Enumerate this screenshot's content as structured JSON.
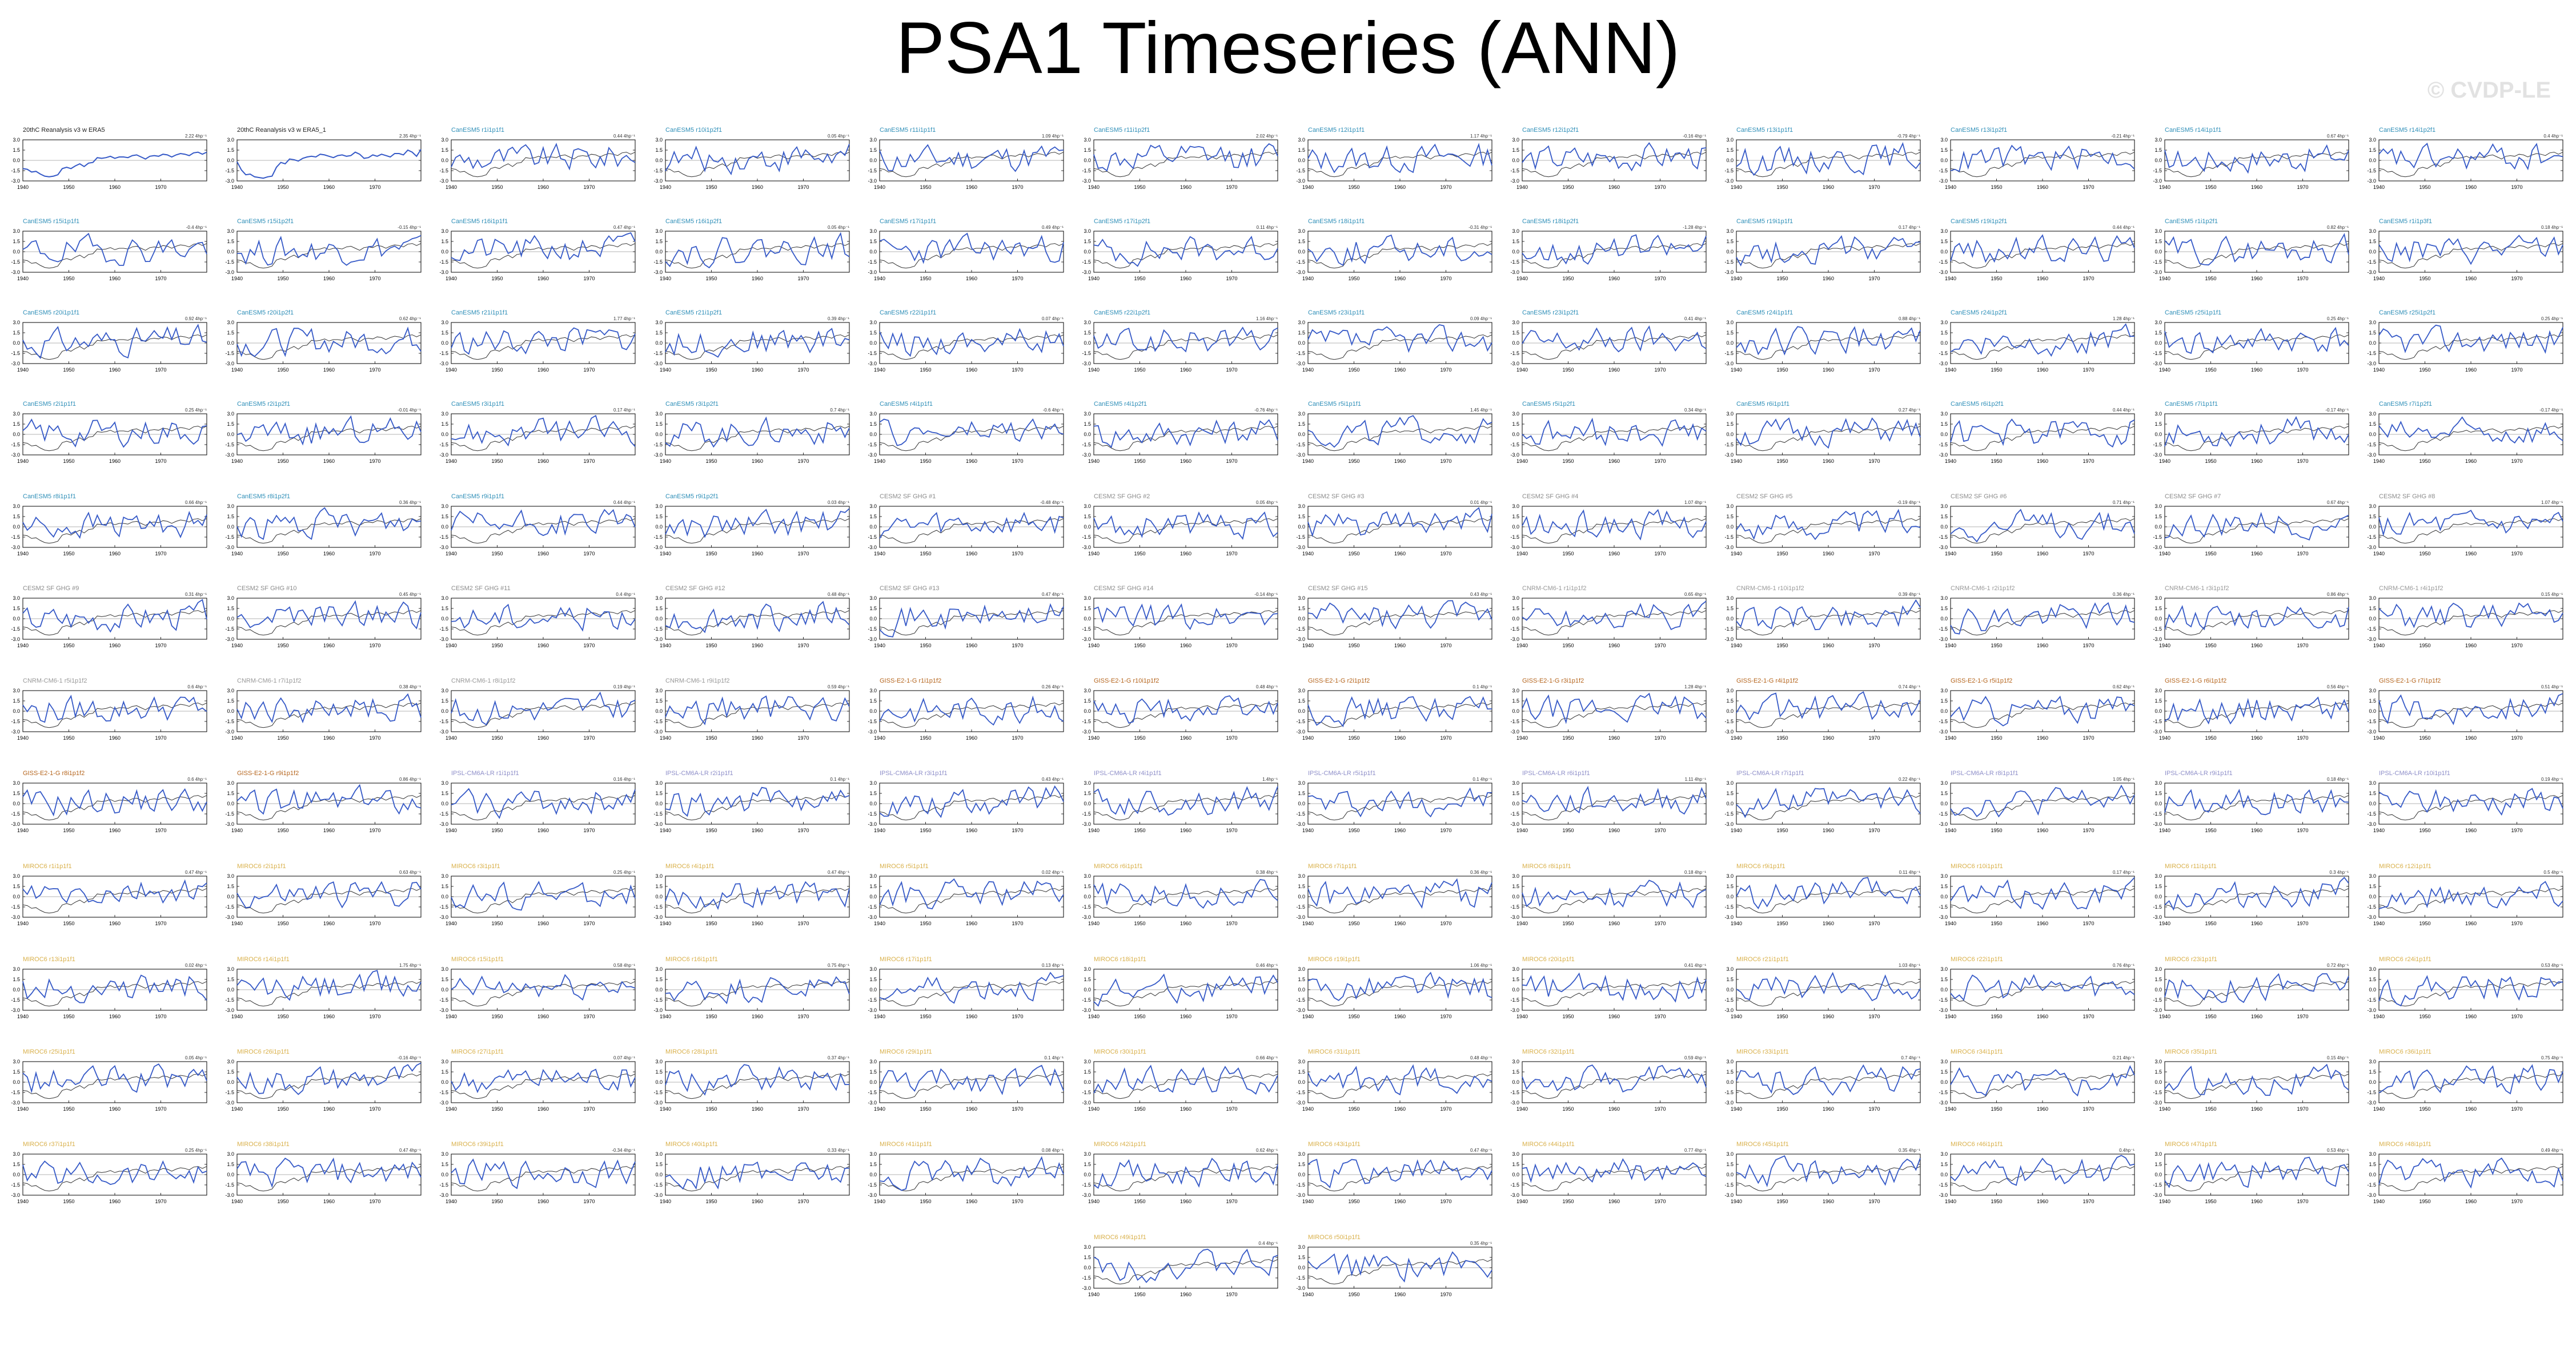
{
  "page": {
    "title": "PSA1 Timeseries (ANN)",
    "watermark": "© CVDP-LE"
  },
  "colors": {
    "model_line": "#3559c7",
    "obs_line": "#333333",
    "zero_line": "#9a9a9a",
    "obs_label": "#222222",
    "CanESM5": "#2f8fb8",
    "CESM2": "#8c8c8c",
    "CNRM": "#999999",
    "GISS": "#b5651d",
    "IPSL": "#8f8fc9",
    "MIROC6": "#d9b04a"
  },
  "chart_data": {
    "type": "line",
    "panel_count": 146,
    "xlim": [
      1940,
      1980
    ],
    "ylim": [
      -3,
      3
    ],
    "xticks": [
      "1940",
      "1950",
      "1960",
      "1970"
    ],
    "yticks": [
      "3.0",
      "1.5",
      "0.0",
      "-1.5",
      "-3.0"
    ],
    "series_colors": {
      "member": "#3559c7",
      "observations": "#333333"
    },
    "panels": [
      {
        "label": "20thC Reanalysis v3 w ERA5",
        "group": "obs",
        "corner": "2.22 4hp⁻¹",
        "series": [
          -1.2,
          -1.3,
          -1.7,
          -1.6,
          -2.0,
          -2.3,
          -2.4,
          -2.3,
          -2.1,
          -1.2,
          -1.0,
          -1.2,
          -0.8,
          -0.5,
          -0.9,
          -0.4,
          -0.3,
          0.4,
          0.3,
          0.4,
          0.6,
          0.3,
          0.5,
          0.5,
          0.4,
          0.7,
          0.8,
          0.5,
          0.2,
          0.6,
          0.7,
          0.6,
          0.9,
          0.8,
          0.5,
          0.8,
          1.0,
          0.9,
          0.7,
          1.1,
          1.2,
          0.9,
          1.2
        ]
      },
      {
        "label": "20thC Reanalysis v3 w ERA5_1",
        "group": "obs",
        "corner": "2.35 4hp⁻¹",
        "series": [
          -0.2,
          -1.4,
          -2.1,
          -2.0,
          -2.4,
          -2.5,
          -2.6,
          -2.4,
          -2.3,
          -1.0,
          -0.3,
          -0.5,
          0.2,
          0.1,
          -0.1,
          0.3,
          0.5,
          0.6,
          0.5,
          0.9,
          0.8,
          0.6,
          0.4,
          0.7,
          0.8,
          0.6,
          0.7,
          1.2,
          0.9,
          0.3,
          0.4,
          0.8,
          0.6,
          0.9,
          0.7,
          0.5,
          1.0,
          1.0,
          0.8,
          1.5,
          1.2,
          0.6,
          1.6
        ]
      },
      {
        "label": "CanESM5 r1i1p1f1",
        "group": "CanESM5",
        "corner": "0.44 4hp⁻¹"
      },
      {
        "label": "CanESM5 r10i1p2f1",
        "group": "CanESM5",
        "corner": "0.05 4hp⁻¹"
      },
      {
        "label": "CanESM5 r11i1p1f1",
        "group": "CanESM5",
        "corner": "1.09 4hp⁻¹"
      },
      {
        "label": "CanESM5 r11i1p2f1",
        "group": "CanESM5",
        "corner": "2.02 4hp⁻¹"
      },
      {
        "label": "CanESM5 r12i1p1f1",
        "group": "CanESM5",
        "corner": "1.17 4hp⁻¹"
      },
      {
        "label": "CanESM5 r12i1p2f1",
        "group": "CanESM5",
        "corner": "-0.16 4hp⁻¹"
      },
      {
        "label": "CanESM5 r13i1p1f1",
        "group": "CanESM5",
        "corner": "-0.79 4hp⁻¹"
      },
      {
        "label": "CanESM5 r13i1p2f1",
        "group": "CanESM5",
        "corner": "-0.21 4hp⁻¹"
      },
      {
        "label": "CanESM5 r14i1p1f1",
        "group": "CanESM5",
        "corner": "0.67 4hp⁻¹"
      },
      {
        "label": "CanESM5 r14i1p2f1",
        "group": "CanESM5",
        "corner": "0.4 4hp⁻¹"
      },
      {
        "label": "CanESM5 r15i1p1f1",
        "group": "CanESM5",
        "corner": "-0.4 4hp⁻¹"
      },
      {
        "label": "CanESM5 r15i1p2f1",
        "group": "CanESM5",
        "corner": "-0.15 4hp⁻¹"
      },
      {
        "label": "CanESM5 r16i1p1f1",
        "group": "CanESM5",
        "corner": "0.47 4hp⁻¹"
      },
      {
        "label": "CanESM5 r16i1p2f1",
        "group": "CanESM5",
        "corner": "0.05 4hp⁻¹"
      },
      {
        "label": "CanESM5 r17i1p1f1",
        "group": "CanESM5",
        "corner": "0.49 4hp⁻¹"
      },
      {
        "label": "CanESM5 r17i1p2f1",
        "group": "CanESM5",
        "corner": "0.11 4hp⁻¹"
      },
      {
        "label": "CanESM5 r18i1p1f1",
        "group": "CanESM5",
        "corner": "-0.31 4hp⁻¹"
      },
      {
        "label": "CanESM5 r18i1p2f1",
        "group": "CanESM5",
        "corner": "-1.28 4hp⁻¹"
      },
      {
        "label": "CanESM5 r19i1p1f1",
        "group": "CanESM5",
        "corner": "0.17 4hp⁻¹"
      },
      {
        "label": "CanESM5 r19i1p2f1",
        "group": "CanESM5",
        "corner": "0.44 4hp⁻¹"
      },
      {
        "label": "CanESM5 r1i1p2f1",
        "group": "CanESM5",
        "corner": "0.82 4hp⁻¹"
      },
      {
        "label": "CanESM5 r1i1p3f1",
        "group": "CanESM5",
        "corner": "0.18 4hp⁻¹"
      },
      {
        "label": "CanESM5 r20i1p1f1",
        "group": "CanESM5",
        "corner": "0.92 4hp⁻¹"
      },
      {
        "label": "CanESM5 r20i1p2f1",
        "group": "CanESM5",
        "corner": "0.62 4hp⁻¹"
      },
      {
        "label": "CanESM5 r21i1p1f1",
        "group": "CanESM5",
        "corner": "1.77 4hp⁻¹"
      },
      {
        "label": "CanESM5 r21i1p2f1",
        "group": "CanESM5",
        "corner": "0.39 4hp⁻¹"
      },
      {
        "label": "CanESM5 r22i1p1f1",
        "group": "CanESM5",
        "corner": "0.07 4hp⁻¹"
      },
      {
        "label": "CanESM5 r22i1p2f1",
        "group": "CanESM5",
        "corner": "1.16 4hp⁻¹"
      },
      {
        "label": "CanESM5 r23i1p1f1",
        "group": "CanESM5",
        "corner": "0.09 4hp⁻¹"
      },
      {
        "label": "CanESM5 r23i1p2f1",
        "group": "CanESM5",
        "corner": "0.41 4hp⁻¹"
      },
      {
        "label": "CanESM5 r24i1p1f1",
        "group": "CanESM5",
        "corner": "0.88 4hp⁻¹"
      },
      {
        "label": "CanESM5 r24i1p2f1",
        "group": "CanESM5",
        "corner": "1.28 4hp⁻¹"
      },
      {
        "label": "CanESM5 r25i1p1f1",
        "group": "CanESM5",
        "corner": "0.25 4hp⁻¹"
      },
      {
        "label": "CanESM5 r25i1p2f1",
        "group": "CanESM5",
        "corner": "0.25 4hp⁻¹"
      },
      {
        "label": "CanESM5 r2i1p1f1",
        "group": "CanESM5",
        "corner": "0.25 4hp⁻¹"
      },
      {
        "label": "CanESM5 r2i1p2f1",
        "group": "CanESM5",
        "corner": "-0.01 4hp⁻¹"
      },
      {
        "label": "CanESM5 r3i1p1f1",
        "group": "CanESM5",
        "corner": "0.17 4hp⁻¹"
      },
      {
        "label": "CanESM5 r3i1p2f1",
        "group": "CanESM5",
        "corner": "0.7 4hp⁻¹"
      },
      {
        "label": "CanESM5 r4i1p1f1",
        "group": "CanESM5",
        "corner": "-0.6 4hp⁻¹"
      },
      {
        "label": "CanESM5 r4i1p2f1",
        "group": "CanESM5",
        "corner": "-0.76 4hp⁻¹"
      },
      {
        "label": "CanESM5 r5i1p1f1",
        "group": "CanESM5",
        "corner": "1.45 4hp⁻¹"
      },
      {
        "label": "CanESM5 r5i1p2f1",
        "group": "CanESM5",
        "corner": "0.34 4hp⁻¹"
      },
      {
        "label": "CanESM5 r6i1p1f1",
        "group": "CanESM5",
        "corner": "0.27 4hp⁻¹"
      },
      {
        "label": "CanESM5 r6i1p2f1",
        "group": "CanESM5",
        "corner": "0.44 4hp⁻¹"
      },
      {
        "label": "CanESM5 r7i1p1f1",
        "group": "CanESM5",
        "corner": "-0.17 4hp⁻¹"
      },
      {
        "label": "CanESM5 r7i1p2f1",
        "group": "CanESM5",
        "corner": "-0.17 4hp⁻¹"
      },
      {
        "label": "CanESM5 r8i1p1f1",
        "group": "CanESM5",
        "corner": "0.66 4hp⁻¹"
      },
      {
        "label": "CanESM5 r8i1p2f1",
        "group": "CanESM5",
        "corner": "0.36 4hp⁻¹"
      },
      {
        "label": "CanESM5 r9i1p1f1",
        "group": "CanESM5",
        "corner": "0.44 4hp⁻¹"
      },
      {
        "label": "CanESM5 r9i1p2f1",
        "group": "CanESM5",
        "corner": "0.03 4hp⁻¹"
      },
      {
        "label": "CESM2 SF GHG #1",
        "group": "CESM2",
        "corner": "-0.48 4hp⁻¹"
      },
      {
        "label": "CESM2 SF GHG #2",
        "group": "CESM2",
        "corner": "0.05 4hp⁻¹"
      },
      {
        "label": "CESM2 SF GHG #3",
        "group": "CESM2",
        "corner": "0.01 4hp⁻¹"
      },
      {
        "label": "CESM2 SF GHG #4",
        "group": "CESM2",
        "corner": "1.07 4hp⁻¹"
      },
      {
        "label": "CESM2 SF GHG #5",
        "group": "CESM2",
        "corner": "-0.19 4hp⁻¹"
      },
      {
        "label": "CESM2 SF GHG #6",
        "group": "CESM2",
        "corner": "0.71 4hp⁻¹"
      },
      {
        "label": "CESM2 SF GHG #7",
        "group": "CESM2",
        "corner": "0.67 4hp⁻¹"
      },
      {
        "label": "CESM2 SF GHG #8",
        "group": "CESM2",
        "corner": "1.07 4hp⁻¹"
      },
      {
        "label": "CESM2 SF GHG #9",
        "group": "CESM2",
        "corner": "0.31 4hp⁻¹"
      },
      {
        "label": "CESM2 SF GHG #10",
        "group": "CESM2",
        "corner": "0.45 4hp⁻¹"
      },
      {
        "label": "CESM2 SF GHG #11",
        "group": "CESM2",
        "corner": "0.4 4hp⁻¹"
      },
      {
        "label": "CESM2 SF GHG #12",
        "group": "CESM2",
        "corner": "0.48 4hp⁻¹"
      },
      {
        "label": "CESM2 SF GHG #13",
        "group": "CESM2",
        "corner": "0.47 4hp⁻¹"
      },
      {
        "label": "CESM2 SF GHG #14",
        "group": "CESM2",
        "corner": "-0.14 4hp⁻¹"
      },
      {
        "label": "CESM2 SF GHG #15",
        "group": "CESM2",
        "corner": "0.43 4hp⁻¹"
      },
      {
        "label": "CNRM-CM6-1 r1i1p1f2",
        "group": "CNRM",
        "corner": "0.65 4hp⁻¹"
      },
      {
        "label": "CNRM-CM6-1 r10i1p1f2",
        "group": "CNRM",
        "corner": "0.39 4hp⁻¹"
      },
      {
        "label": "CNRM-CM6-1 r2i1p1f2",
        "group": "CNRM",
        "corner": "0.36 4hp⁻¹"
      },
      {
        "label": "CNRM-CM6-1 r3i1p1f2",
        "group": "CNRM",
        "corner": "0.86 4hp⁻¹"
      },
      {
        "label": "CNRM-CM6-1 r4i1p1f2",
        "group": "CNRM",
        "corner": "0.15 4hp⁻¹"
      },
      {
        "label": "CNRM-CM6-1 r5i1p1f2",
        "group": "CNRM",
        "corner": "0.6 4hp⁻¹"
      },
      {
        "label": "CNRM-CM6-1 r7i1p1f2",
        "group": "CNRM",
        "corner": "0.38 4hp⁻¹"
      },
      {
        "label": "CNRM-CM6-1 r8i1p1f2",
        "group": "CNRM",
        "corner": "0.19 4hp⁻¹"
      },
      {
        "label": "CNRM-CM6-1 r9i1p1f2",
        "group": "CNRM",
        "corner": "0.59 4hp⁻¹"
      },
      {
        "label": "GISS-E2-1-G r1i1p1f2",
        "group": "GISS",
        "corner": "0.26 4hp⁻¹"
      },
      {
        "label": "GISS-E2-1-G r10i1p1f2",
        "group": "GISS",
        "corner": "0.48 4hp⁻¹"
      },
      {
        "label": "GISS-E2-1-G r2i1p1f2",
        "group": "GISS",
        "corner": "0.1 4hp⁻¹"
      },
      {
        "label": "GISS-E2-1-G r3i1p1f2",
        "group": "GISS",
        "corner": "1.28 4hp⁻¹"
      },
      {
        "label": "GISS-E2-1-G r4i1p1f2",
        "group": "GISS",
        "corner": "0.74 4hp⁻¹"
      },
      {
        "label": "GISS-E2-1-G r5i1p1f2",
        "group": "GISS",
        "corner": "0.62 4hp⁻¹"
      },
      {
        "label": "GISS-E2-1-G r6i1p1f2",
        "group": "GISS",
        "corner": "0.56 4hp⁻¹"
      },
      {
        "label": "GISS-E2-1-G r7i1p1f2",
        "group": "GISS",
        "corner": "0.51 4hp⁻¹"
      },
      {
        "label": "GISS-E2-1-G r8i1p1f2",
        "group": "GISS",
        "corner": "0.6 4hp⁻¹"
      },
      {
        "label": "GISS-E2-1-G r9i1p1f2",
        "group": "GISS",
        "corner": "0.86 4hp⁻¹"
      },
      {
        "label": "IPSL-CM6A-LR r1i1p1f1",
        "group": "IPSL",
        "corner": "0.16 4hp⁻¹"
      },
      {
        "label": "IPSL-CM6A-LR r2i1p1f1",
        "group": "IPSL",
        "corner": "0.1 4hp⁻¹"
      },
      {
        "label": "IPSL-CM6A-LR r3i1p1f1",
        "group": "IPSL",
        "corner": "0.43 4hp⁻¹"
      },
      {
        "label": "IPSL-CM6A-LR r4i1p1f1",
        "group": "IPSL",
        "corner": "1.4hp⁻¹"
      },
      {
        "label": "IPSL-CM6A-LR r5i1p1f1",
        "group": "IPSL",
        "corner": "0.1 4hp⁻¹"
      },
      {
        "label": "IPSL-CM6A-LR r6i1p1f1",
        "group": "IPSL",
        "corner": "1.11 4hp⁻¹"
      },
      {
        "label": "IPSL-CM6A-LR r7i1p1f1",
        "group": "IPSL",
        "corner": "0.22 4hp⁻¹"
      },
      {
        "label": "IPSL-CM6A-LR r8i1p1f1",
        "group": "IPSL",
        "corner": "1.05 4hp⁻¹"
      },
      {
        "label": "IPSL-CM6A-LR r9i1p1f1",
        "group": "IPSL",
        "corner": "0.18 4hp⁻¹"
      },
      {
        "label": "IPSL-CM6A-LR r10i1p1f1",
        "group": "IPSL",
        "corner": "0.19 4hp⁻¹"
      },
      {
        "label": "MIROC6 r1i1p1f1",
        "group": "MIROC6",
        "corner": "0.47 4hp⁻¹"
      },
      {
        "label": "MIROC6 r2i1p1f1",
        "group": "MIROC6",
        "corner": "0.63 4hp⁻¹"
      },
      {
        "label": "MIROC6 r3i1p1f1",
        "group": "MIROC6",
        "corner": "0.25 4hp⁻¹"
      },
      {
        "label": "MIROC6 r4i1p1f1",
        "group": "MIROC6",
        "corner": "0.47 4hp⁻¹"
      },
      {
        "label": "MIROC6 r5i1p1f1",
        "group": "MIROC6",
        "corner": "0.02 4hp⁻¹"
      },
      {
        "label": "MIROC6 r6i1p1f1",
        "group": "MIROC6",
        "corner": "0.38 4hp⁻¹"
      },
      {
        "label": "MIROC6 r7i1p1f1",
        "group": "MIROC6",
        "corner": "0.36 4hp⁻¹"
      },
      {
        "label": "MIROC6 r8i1p1f1",
        "group": "MIROC6",
        "corner": "0.18 4hp⁻¹"
      },
      {
        "label": "MIROC6 r9i1p1f1",
        "group": "MIROC6",
        "corner": "0.11 4hp⁻¹"
      },
      {
        "label": "MIROC6 r10i1p1f1",
        "group": "MIROC6",
        "corner": "0.17 4hp⁻¹"
      },
      {
        "label": "MIROC6 r11i1p1f1",
        "group": "MIROC6",
        "corner": "0.3 4hp⁻¹"
      },
      {
        "label": "MIROC6 r12i1p1f1",
        "group": "MIROC6",
        "corner": "0.5 4hp⁻¹"
      },
      {
        "label": "MIROC6 r13i1p1f1",
        "group": "MIROC6",
        "corner": "0.02 4hp⁻¹"
      },
      {
        "label": "MIROC6 r14i1p1f1",
        "group": "MIROC6",
        "corner": "1.75 4hp⁻¹"
      },
      {
        "label": "MIROC6 r15i1p1f1",
        "group": "MIROC6",
        "corner": "0.58 4hp⁻¹"
      },
      {
        "label": "MIROC6 r16i1p1f1",
        "group": "MIROC6",
        "corner": "0.75 4hp⁻¹"
      },
      {
        "label": "MIROC6 r17i1p1f1",
        "group": "MIROC6",
        "corner": "0.13 4hp⁻¹"
      },
      {
        "label": "MIROC6 r18i1p1f1",
        "group": "MIROC6",
        "corner": "0.46 4hp⁻¹"
      },
      {
        "label": "MIROC6 r19i1p1f1",
        "group": "MIROC6",
        "corner": "1.06 4hp⁻¹"
      },
      {
        "label": "MIROC6 r20i1p1f1",
        "group": "MIROC6",
        "corner": "0.41 4hp⁻¹"
      },
      {
        "label": "MIROC6 r21i1p1f1",
        "group": "MIROC6",
        "corner": "1.03 4hp⁻¹"
      },
      {
        "label": "MIROC6 r22i1p1f1",
        "group": "MIROC6",
        "corner": "0.76 4hp⁻¹"
      },
      {
        "label": "MIROC6 r23i1p1f1",
        "group": "MIROC6",
        "corner": "0.72 4hp⁻¹"
      },
      {
        "label": "MIROC6 r24i1p1f1",
        "group": "MIROC6",
        "corner": "0.53 4hp⁻¹"
      },
      {
        "label": "MIROC6 r25i1p1f1",
        "group": "MIROC6",
        "corner": "0.05 4hp⁻¹"
      },
      {
        "label": "MIROC6 r26i1p1f1",
        "group": "MIROC6",
        "corner": "-0.16 4hp⁻¹"
      },
      {
        "label": "MIROC6 r27i1p1f1",
        "group": "MIROC6",
        "corner": "0.07 4hp⁻¹"
      },
      {
        "label": "MIROC6 r28i1p1f1",
        "group": "MIROC6",
        "corner": "0.37 4hp⁻¹"
      },
      {
        "label": "MIROC6 r29i1p1f1",
        "group": "MIROC6",
        "corner": "0.1 4hp⁻¹"
      },
      {
        "label": "MIROC6 r30i1p1f1",
        "group": "MIROC6",
        "corner": "0.66 4hp⁻¹"
      },
      {
        "label": "MIROC6 r31i1p1f1",
        "group": "MIROC6",
        "corner": "0.48 4hp⁻¹"
      },
      {
        "label": "MIROC6 r32i1p1f1",
        "group": "MIROC6",
        "corner": "0.59 4hp⁻¹"
      },
      {
        "label": "MIROC6 r33i1p1f1",
        "group": "MIROC6",
        "corner": "0.7 4hp⁻¹"
      },
      {
        "label": "MIROC6 r34i1p1f1",
        "group": "MIROC6",
        "corner": "0.21 4hp⁻¹"
      },
      {
        "label": "MIROC6 r35i1p1f1",
        "group": "MIROC6",
        "corner": "0.15 4hp⁻¹"
      },
      {
        "label": "MIROC6 r36i1p1f1",
        "group": "MIROC6",
        "corner": "0.75 4hp⁻¹"
      },
      {
        "label": "MIROC6 r37i1p1f1",
        "group": "MIROC6",
        "corner": "0.25 4hp⁻¹"
      },
      {
        "label": "MIROC6 r38i1p1f1",
        "group": "MIROC6",
        "corner": "0.47 4hp⁻¹"
      },
      {
        "label": "MIROC6 r39i1p1f1",
        "group": "MIROC6",
        "corner": "-0.34 4hp⁻¹"
      },
      {
        "label": "MIROC6 r40i1p1f1",
        "group": "MIROC6",
        "corner": "0.33 4hp⁻¹"
      },
      {
        "label": "MIROC6 r41i1p1f1",
        "group": "MIROC6",
        "corner": "0.08 4hp⁻¹"
      },
      {
        "label": "MIROC6 r42i1p1f1",
        "group": "MIROC6",
        "corner": "0.62 4hp⁻¹"
      },
      {
        "label": "MIROC6 r43i1p1f1",
        "group": "MIROC6",
        "corner": "0.47 4hp⁻¹"
      },
      {
        "label": "MIROC6 r44i1p1f1",
        "group": "MIROC6",
        "corner": "0.77 4hp⁻¹"
      },
      {
        "label": "MIROC6 r45i1p1f1",
        "group": "MIROC6",
        "corner": "0.35 4hp⁻¹"
      },
      {
        "label": "MIROC6 r46i1p1f1",
        "group": "MIROC6",
        "corner": "0.4hp⁻¹"
      },
      {
        "label": "MIROC6 r47i1p1f1",
        "group": "MIROC6",
        "corner": "0.53 4hp⁻¹"
      },
      {
        "label": "MIROC6 r48i1p1f1",
        "group": "MIROC6",
        "corner": "0.49 4hp⁻¹"
      },
      {
        "label": "MIROC6 r49i1p1f1",
        "group": "MIROC6",
        "corner": "0.4 4hp⁻¹"
      },
      {
        "label": "MIROC6 r50i1p1f1",
        "group": "MIROC6",
        "corner": "0.35 4hp⁻¹"
      }
    ]
  }
}
